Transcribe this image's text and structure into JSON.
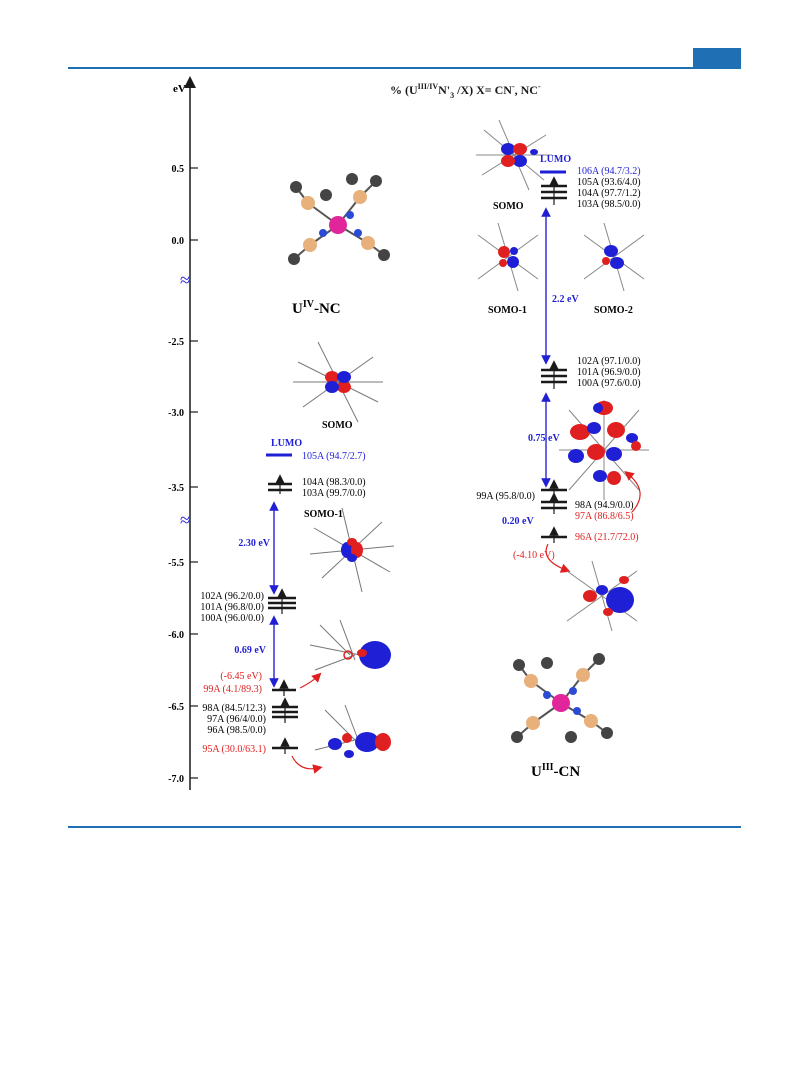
{
  "figure": {
    "title": "% (U",
    "title_sup": "III/IV",
    "title_mid": "N'",
    "title_sub": "3",
    "title_end": " /X) X=  CN",
    "title_sup2": "-",
    "title_tail": ", NC",
    "title_sup3": "-",
    "axis_label": "eV",
    "ticks": [
      "0.5",
      "0.0",
      "-2.5",
      "-3.0",
      "-3.5",
      "-5.5",
      "-6.0",
      "-6.5",
      "-7.0"
    ],
    "break_symbol": "≈",
    "colors": {
      "black": "#1a1a1a",
      "blue": "#1f1fd6",
      "red": "#e02020",
      "rule": "#1f6fb4"
    }
  },
  "left": {
    "compound_main": "U",
    "compound_sup": "IV",
    "compound_tail": "-NC",
    "lumo_label": "LUMO",
    "lumo": "105A (94.7/2.7)",
    "group1": [
      "104A (98.3/0.0)",
      "103A (99.7/0.0)"
    ],
    "group2": [
      "102A (96.2/0.0)",
      "101A (96.8/0.0)",
      "100A (96.0/0.0)"
    ],
    "group3": [
      "98A (84.5/12.3)",
      "97A (96/4/0.0)",
      "96A (98.5/0.0)"
    ],
    "somo_red": "99A (4.1/89.3)",
    "somo_red_energy": "(-6.45 eV)",
    "low_red": "95A (30.0/63.1)",
    "gap1": "2.30 eV",
    "gap2": "0.69 eV",
    "orb_somo": "SOMO",
    "orb_somo1": "SOMO-1"
  },
  "right": {
    "compound_main": "U",
    "compound_sup": "III",
    "compound_tail": "-CN",
    "lumo_label": "LUMO",
    "lumo": "106A (94.7/3.2)",
    "group1": [
      "105A (93.6/4.0)",
      "104A (97.7/1.2)",
      "103A (98.5/0.0)"
    ],
    "group2": [
      "102A (97.1/0.0)",
      "101A (96.9/0.0)",
      "100A (97.6/0.0)"
    ],
    "level99": "99A (95.8/0.0)",
    "level98": "98A (94.9/0.0)",
    "level97": "97A (86.8/6.5)",
    "level96": "96A (21.7/72.0)",
    "level96_energy": "(-4.10 eV)",
    "gap1": "2.2 eV",
    "gap2": "0.75 eV",
    "gap3": "0.20 eV",
    "orb_somo": "SOMO",
    "orb_somo1": "SOMO-1",
    "orb_somo2": "SOMO-2"
  }
}
